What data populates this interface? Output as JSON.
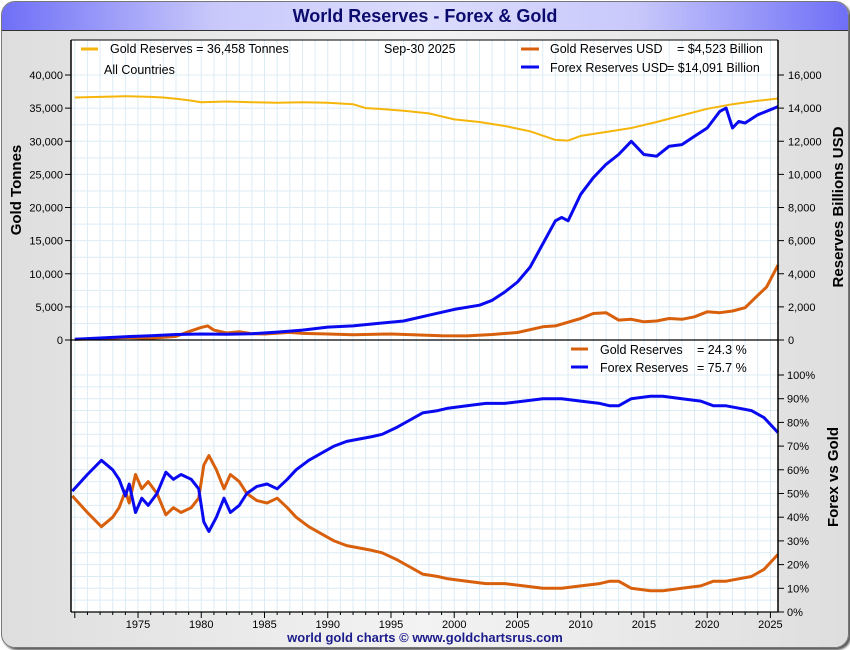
{
  "title": "World Reserves - Forex & Gold",
  "footer": "world gold charts © www.goldchartsrus.com",
  "colors": {
    "gold_tonnes": "#f5b50a",
    "gold_usd": "#d8600c",
    "forex_usd": "#0a0af0",
    "grid": "#dcecf6"
  },
  "chart_data": [
    {
      "type": "line",
      "panel": "top",
      "legend": {
        "gold_tonnes": "Gold Reserves = 36,458 Tonnes",
        "subtitle": "All Countries",
        "date": "Sep-30  2025",
        "gold_usd_label": "Gold Reserves USD",
        "gold_usd_value": "= $4,523 Billion",
        "forex_usd_label": "Forex Reserves USD",
        "forex_usd_value": "= $14,091 Billion"
      },
      "ylabel_left": "Gold Tonnes",
      "ylabel_right": "Reserves Billions USD",
      "ylim_left": [
        0,
        40000
      ],
      "ylim_right": [
        0,
        16000
      ],
      "yticks_left": [
        "0",
        "5,000",
        "10,000",
        "15,000",
        "20,000",
        "25,000",
        "30,000",
        "35,000",
        "40,000"
      ],
      "yticks_right": [
        "0",
        "2,000",
        "4,000",
        "6,000",
        "8,000",
        "10,000",
        "12,000",
        "14,000",
        "16,000"
      ],
      "xlim": [
        1969.7,
        2025.6
      ],
      "series": [
        {
          "name": "Gold Reserves (Tonnes)",
          "axis": "left",
          "color_key": "gold_tonnes",
          "x": [
            1970,
            1972,
            1974,
            1976,
            1977,
            1978,
            1979,
            1980,
            1982,
            1984,
            1986,
            1988,
            1990,
            1992,
            1993,
            1994,
            1996,
            1998,
            2000,
            2002,
            2004,
            2006,
            2008,
            2009,
            2010,
            2012,
            2014,
            2016,
            2018,
            2020,
            2022,
            2024,
            2025.6
          ],
          "y": [
            36600,
            36700,
            36800,
            36700,
            36600,
            36400,
            36200,
            35900,
            36000,
            35900,
            35800,
            35900,
            35800,
            35600,
            35000,
            34900,
            34600,
            34200,
            33300,
            32900,
            32300,
            31500,
            30200,
            30100,
            30800,
            31400,
            32000,
            32900,
            33900,
            34900,
            35600,
            36100,
            36458
          ]
        },
        {
          "name": "Gold Reserves USD",
          "axis": "right",
          "color_key": "gold_usd",
          "x": [
            1970,
            1972,
            1974,
            1976,
            1978,
            1979,
            1980,
            1980.5,
            1981,
            1982,
            1983,
            1984,
            1985,
            1987,
            1988,
            1990,
            1992,
            1995,
            1999,
            2001,
            2003,
            2005,
            2007,
            2008,
            2010,
            2011,
            2012,
            2013,
            2014,
            2015,
            2016,
            2017,
            2018,
            2019,
            2020,
            2021,
            2022,
            2023,
            2024,
            2024.7,
            2025.6
          ],
          "y": [
            40,
            80,
            150,
            110,
            220,
            500,
            760,
            850,
            600,
            420,
            500,
            380,
            360,
            460,
            400,
            360,
            320,
            360,
            260,
            250,
            330,
            450,
            800,
            850,
            1300,
            1600,
            1650,
            1200,
            1250,
            1100,
            1150,
            1300,
            1250,
            1400,
            1700,
            1650,
            1750,
            1950,
            2700,
            3200,
            4523
          ]
        },
        {
          "name": "Forex Reserves USD",
          "axis": "right",
          "color_key": "forex_usd",
          "x": [
            1970,
            1972,
            1974,
            1976,
            1978,
            1980,
            1982,
            1984,
            1986,
            1988,
            1990,
            1992,
            1994,
            1996,
            1998,
            2000,
            2002,
            2003,
            2004,
            2005,
            2006,
            2007,
            2008,
            2008.5,
            2009,
            2010,
            2011,
            2012,
            2013,
            2014,
            2015,
            2016,
            2017,
            2018,
            2019,
            2020,
            2021,
            2021.5,
            2022,
            2022.5,
            2023,
            2024,
            2025.6
          ],
          "y": [
            45,
            120,
            200,
            260,
            330,
            360,
            350,
            380,
            480,
            600,
            780,
            850,
            1000,
            1150,
            1500,
            1850,
            2100,
            2400,
            2900,
            3500,
            4400,
            5800,
            7200,
            7400,
            7200,
            8800,
            9800,
            10600,
            11200,
            12000,
            11200,
            11100,
            11700,
            11800,
            12300,
            12800,
            13800,
            14000,
            12800,
            13200,
            13100,
            13600,
            14091
          ]
        }
      ]
    },
    {
      "type": "line",
      "panel": "bottom",
      "legend": {
        "gold_label": "Gold Reserves",
        "gold_value": "= 24.3 %",
        "forex_label": "Forex Reserves",
        "forex_value": "= 75.7 %"
      },
      "ylabel_right": "Forex vs Gold",
      "ylim": [
        0,
        100
      ],
      "yticks": [
        "0%",
        "10%",
        "20%",
        "30%",
        "40%",
        "50%",
        "60%",
        "70%",
        "80%",
        "90%",
        "100%"
      ],
      "xticks": [
        "1975",
        "1980",
        "1985",
        "1990",
        "1995",
        "2000",
        "2005",
        "2010",
        "2015",
        "2020",
        "2025"
      ],
      "xlim": [
        1969.7,
        2025.6
      ],
      "series": [
        {
          "name": "Gold Reserves %",
          "color_key": "gold_usd",
          "x": [
            1969.8,
            1971,
            1972.1,
            1973,
            1973.5,
            1974,
            1974.3,
            1974.8,
            1975.3,
            1975.8,
            1976.5,
            1977.2,
            1977.8,
            1978.4,
            1979.2,
            1979.8,
            1980.2,
            1980.6,
            1981.2,
            1981.8,
            1982.3,
            1983,
            1983.6,
            1984.4,
            1985.2,
            1986,
            1986.8,
            1987.5,
            1988.5,
            1989.5,
            1990.5,
            1991.5,
            1992.5,
            1993.5,
            1994.3,
            1995.5,
            1996.5,
            1997.5,
            1998.7,
            1999.5,
            2001,
            2002.5,
            2004,
            2005.5,
            2007,
            2008.5,
            2010,
            2011.5,
            2012.3,
            2013,
            2014,
            2015.5,
            2016.5,
            2018,
            2019.5,
            2020.5,
            2021.5,
            2022.5,
            2023.5,
            2024.5,
            2025.6
          ],
          "y": [
            49,
            42,
            36,
            40,
            44,
            51,
            46,
            58,
            52,
            55,
            50,
            41,
            44,
            42,
            44,
            48,
            62,
            66,
            60,
            52,
            58,
            55,
            50,
            47,
            46,
            48,
            44,
            40,
            36,
            33,
            30,
            28,
            27,
            26,
            25,
            22,
            19,
            16,
            15,
            14,
            13,
            12,
            12,
            11,
            10,
            10,
            11,
            12,
            13,
            13,
            10,
            9,
            9,
            10,
            11,
            13,
            13,
            14,
            15,
            18,
            24.3
          ]
        },
        {
          "name": "Forex Reserves %",
          "color_key": "forex_usd",
          "x": [
            1969.8,
            1971,
            1972.1,
            1973,
            1973.5,
            1974,
            1974.3,
            1974.8,
            1975.3,
            1975.8,
            1976.5,
            1977.2,
            1977.8,
            1978.4,
            1979.2,
            1979.8,
            1980.2,
            1980.6,
            1981.2,
            1981.8,
            1982.3,
            1983,
            1983.6,
            1984.4,
            1985.2,
            1986,
            1986.8,
            1987.5,
            1988.5,
            1989.5,
            1990.5,
            1991.5,
            1992.5,
            1993.5,
            1994.3,
            1995.5,
            1996.5,
            1997.5,
            1998.7,
            1999.5,
            2001,
            2002.5,
            2004,
            2005.5,
            2007,
            2008.5,
            2010,
            2011.5,
            2012.3,
            2013,
            2014,
            2015.5,
            2016.5,
            2018,
            2019.5,
            2020.5,
            2021.5,
            2022.5,
            2023.5,
            2024.5,
            2025.6
          ],
          "y": [
            51,
            58,
            64,
            60,
            56,
            49,
            54,
            42,
            48,
            45,
            50,
            59,
            56,
            58,
            56,
            52,
            38,
            34,
            40,
            48,
            42,
            45,
            50,
            53,
            54,
            52,
            56,
            60,
            64,
            67,
            70,
            72,
            73,
            74,
            75,
            78,
            81,
            84,
            85,
            86,
            87,
            88,
            88,
            89,
            90,
            90,
            89,
            88,
            87,
            87,
            90,
            91,
            91,
            90,
            89,
            87,
            87,
            86,
            85,
            82,
            75.7
          ]
        }
      ]
    }
  ]
}
